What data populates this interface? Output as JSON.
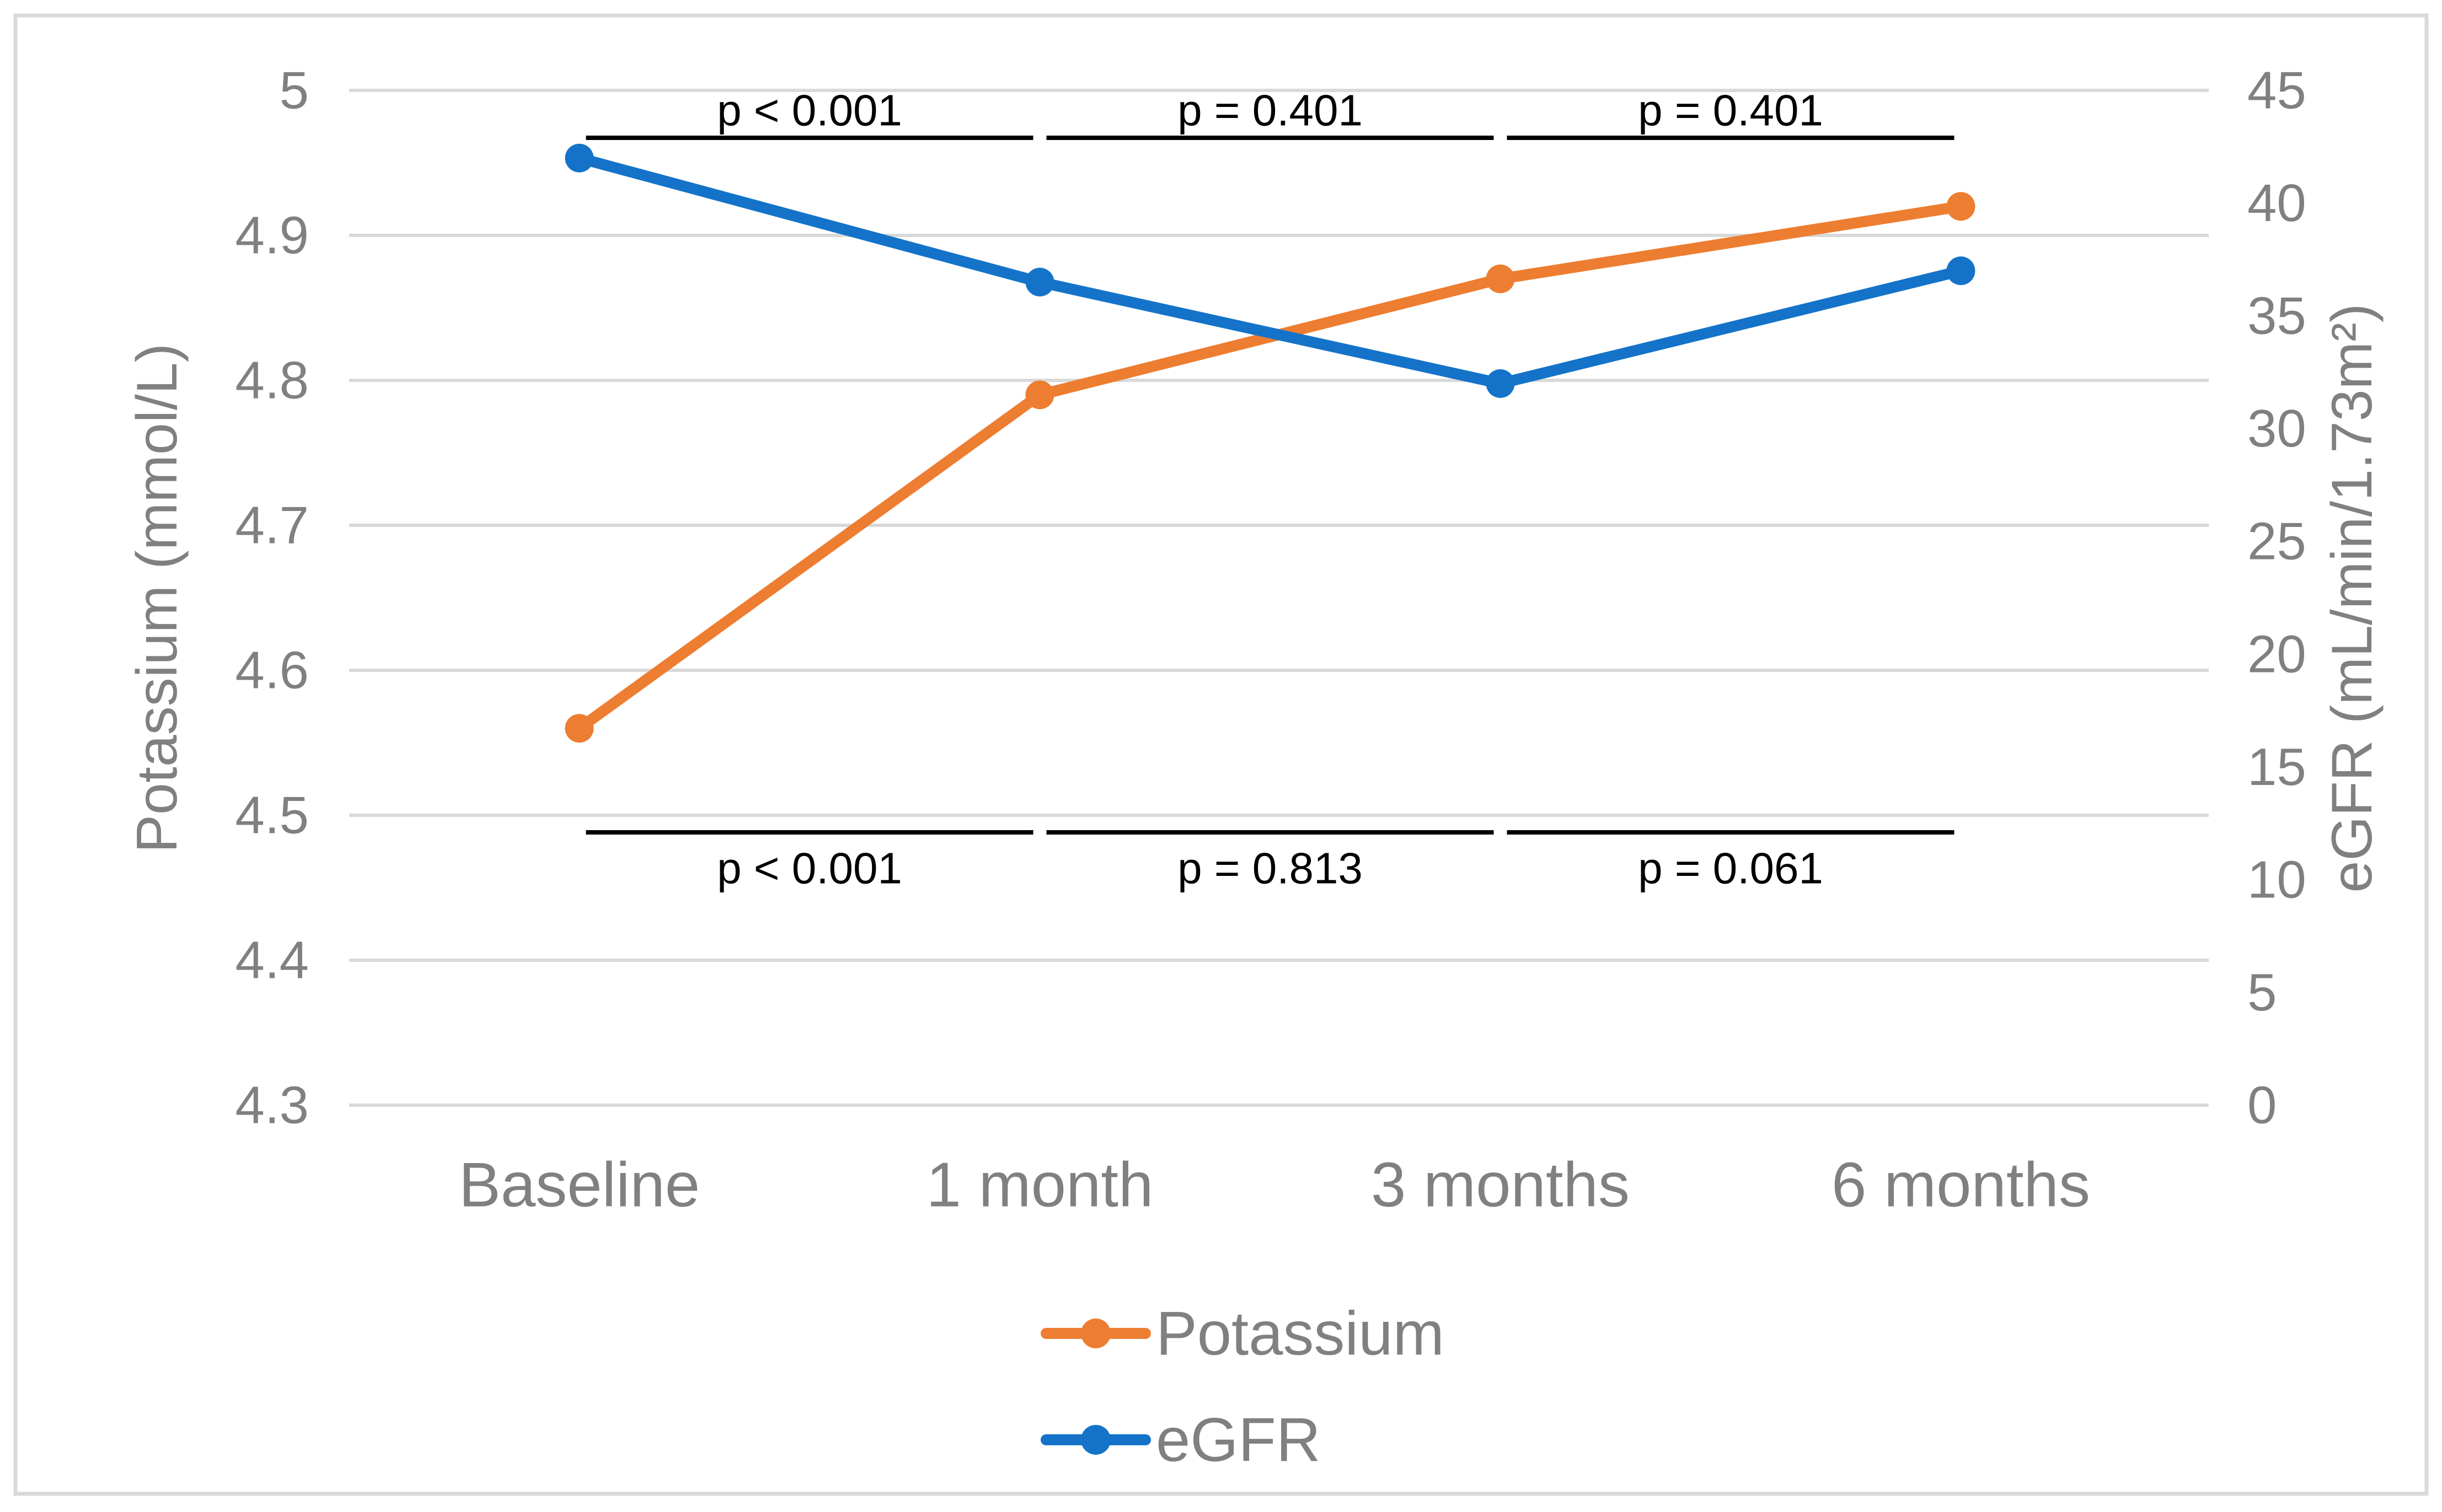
{
  "figure": {
    "background": "#FFFFFF",
    "border_color": "#D9D9D9"
  },
  "chart_data": {
    "type": "line",
    "categories": [
      "Baseline",
      "1 month",
      "3 months",
      "6 months"
    ],
    "series": [
      {
        "name": "Potassium",
        "axis": "left",
        "color": "#ED7D31",
        "values": [
          4.56,
          4.79,
          4.87,
          4.92
        ]
      },
      {
        "name": "eGFR",
        "axis": "right",
        "color": "#1473C8",
        "values": [
          42,
          36.5,
          32,
          37
        ]
      }
    ],
    "left_axis": {
      "label": "Potassium (mmol/L)",
      "range": [
        4.3,
        5
      ],
      "ticks": [
        "5",
        "4.9",
        "4.8",
        "4.7",
        "4.6",
        "4.5",
        "4.4",
        "4.3"
      ]
    },
    "right_axis": {
      "label": "eGFR (mL/min/1.73m²)",
      "range": [
        0,
        45
      ],
      "ticks": [
        "45",
        "40",
        "35",
        "30",
        "25",
        "20",
        "15",
        "10",
        "5",
        "0"
      ]
    },
    "grid": true,
    "gridline_color": "#D9D9D9",
    "text_color": "#808080",
    "annotation_color": "#000000",
    "legend_position": "bottom-center",
    "annotations": {
      "top": [
        {
          "label": "p < 0.001",
          "from": 0,
          "to": 1
        },
        {
          "label": "p = 0.401",
          "from": 1,
          "to": 2
        },
        {
          "label": "p = 0.401",
          "from": 2,
          "to": 3
        }
      ],
      "bottom": [
        {
          "label": "p < 0.001",
          "from": 0,
          "to": 1
        },
        {
          "label": "p = 0.813",
          "from": 1,
          "to": 2
        },
        {
          "label": "p = 0.061",
          "from": 2,
          "to": 3
        }
      ]
    }
  },
  "legend": {
    "items": [
      {
        "label": "Potassium"
      },
      {
        "label": "eGFR"
      }
    ]
  }
}
